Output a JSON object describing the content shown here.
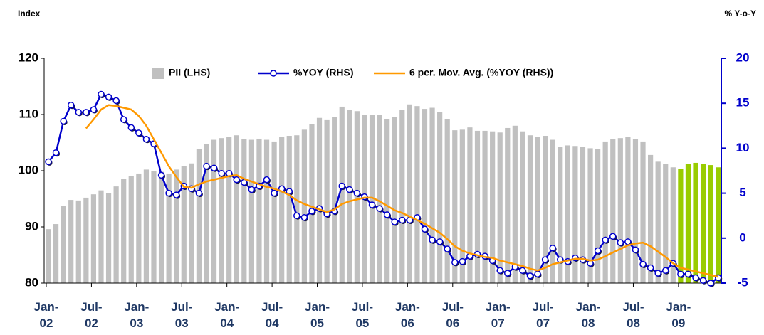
{
  "chart_data": {
    "type": "bar_line",
    "left_axis_title": "Index",
    "right_axis_title": "% Y-o-Y",
    "categories": [
      "Jan-02",
      null,
      null,
      null,
      null,
      null,
      "Jul-02",
      null,
      null,
      null,
      null,
      null,
      "Jan-03",
      null,
      null,
      null,
      null,
      null,
      "Jul-03",
      null,
      null,
      null,
      null,
      null,
      "Jan-04",
      null,
      null,
      null,
      null,
      null,
      "Jul-04",
      null,
      null,
      null,
      null,
      null,
      "Jan-05",
      null,
      null,
      null,
      null,
      null,
      "Jul-05",
      null,
      null,
      null,
      null,
      null,
      "Jan-06",
      null,
      null,
      null,
      null,
      null,
      "Jul-06",
      null,
      null,
      null,
      null,
      null,
      "Jan-07",
      null,
      null,
      null,
      null,
      null,
      "Jul-07",
      null,
      null,
      null,
      null,
      null,
      "Jan-08",
      null,
      null,
      null,
      null,
      null,
      "Jul-08",
      null,
      null,
      null,
      null,
      null,
      "Jan-09",
      null,
      null,
      null,
      null,
      null
    ],
    "ylim": [
      80,
      120
    ],
    "yticks": [
      80,
      90,
      100,
      110,
      120
    ],
    "y2lim": [
      -5,
      20
    ],
    "y2ticks": [
      -5,
      0,
      5,
      10,
      15,
      20
    ],
    "series": [
      {
        "name": "PII (LHS)",
        "type": "bar",
        "color": "#c0c0c0",
        "colors": [
          "#c0c0c0",
          "#c0c0c0",
          "#c0c0c0",
          "#c0c0c0",
          "#c0c0c0",
          "#c0c0c0",
          "#c0c0c0",
          "#c0c0c0",
          "#c0c0c0",
          "#c0c0c0",
          "#c0c0c0",
          "#c0c0c0",
          "#c0c0c0",
          "#c0c0c0",
          "#c0c0c0",
          "#c0c0c0",
          "#c0c0c0",
          "#c0c0c0",
          "#c0c0c0",
          "#c0c0c0",
          "#c0c0c0",
          "#c0c0c0",
          "#c0c0c0",
          "#c0c0c0",
          "#c0c0c0",
          "#c0c0c0",
          "#c0c0c0",
          "#c0c0c0",
          "#c0c0c0",
          "#c0c0c0",
          "#c0c0c0",
          "#c0c0c0",
          "#c0c0c0",
          "#c0c0c0",
          "#c0c0c0",
          "#c0c0c0",
          "#c0c0c0",
          "#c0c0c0",
          "#c0c0c0",
          "#c0c0c0",
          "#c0c0c0",
          "#c0c0c0",
          "#c0c0c0",
          "#c0c0c0",
          "#c0c0c0",
          "#c0c0c0",
          "#c0c0c0",
          "#c0c0c0",
          "#c0c0c0",
          "#c0c0c0",
          "#c0c0c0",
          "#c0c0c0",
          "#c0c0c0",
          "#c0c0c0",
          "#c0c0c0",
          "#c0c0c0",
          "#c0c0c0",
          "#c0c0c0",
          "#c0c0c0",
          "#c0c0c0",
          "#c0c0c0",
          "#c0c0c0",
          "#c0c0c0",
          "#c0c0c0",
          "#c0c0c0",
          "#c0c0c0",
          "#c0c0c0",
          "#c0c0c0",
          "#c0c0c0",
          "#c0c0c0",
          "#c0c0c0",
          "#c0c0c0",
          "#c0c0c0",
          "#c0c0c0",
          "#c0c0c0",
          "#c0c0c0",
          "#c0c0c0",
          "#c0c0c0",
          "#c0c0c0",
          "#c0c0c0",
          "#c0c0c0",
          "#c0c0c0",
          "#c0c0c0",
          "#c0c0c0",
          "#99cc00",
          "#99cc00",
          "#99cc00",
          "#99cc00",
          "#99cc00",
          "#99cc00"
        ],
        "values": [
          89.6,
          90.5,
          93.7,
          94.8,
          94.7,
          95.2,
          95.8,
          96.5,
          96,
          97.2,
          98.5,
          99,
          99.5,
          100.2,
          100,
          99.8,
          99.5,
          100.2,
          100.8,
          101.3,
          103.8,
          104.8,
          105.5,
          105.8,
          106,
          106.3,
          105.6,
          105.5,
          105.7,
          105.5,
          105.2,
          106,
          106.2,
          106.3,
          107.3,
          108.3,
          109.4,
          109,
          109.6,
          111.4,
          110.8,
          110.6,
          110,
          110,
          110,
          109.2,
          109.6,
          110.8,
          111.8,
          111.5,
          111,
          111.2,
          110.4,
          109.2,
          107.2,
          107.3,
          107.7,
          107.1,
          107.1,
          107,
          106.8,
          107.6,
          108,
          107,
          106.3,
          106,
          106.2,
          105.5,
          104.3,
          104.5,
          104.4,
          104.3,
          104,
          103.9,
          105.2,
          105.6,
          105.8,
          106,
          105.6,
          105.2,
          102.8,
          101.6,
          101.2,
          100.6,
          100.3,
          101.2,
          101.4,
          101.2,
          101,
          100.6
        ]
      },
      {
        "name": "%YOY (RHS)",
        "type": "line",
        "axis": "y2",
        "color": "#0000cc",
        "marker": true,
        "values": [
          8.5,
          9.5,
          13,
          14.8,
          14,
          14,
          14.3,
          16,
          15.7,
          15.3,
          13.2,
          12.3,
          11.7,
          11,
          10.5,
          7,
          5,
          4.8,
          5.8,
          5.5,
          5,
          8,
          7.8,
          7.2,
          7.2,
          6.5,
          6.2,
          5.4,
          5.8,
          6.5,
          5,
          5.5,
          5.2,
          2.5,
          2.3,
          3,
          3.3,
          2.7,
          3,
          5.8,
          5.4,
          5,
          4.6,
          3.7,
          3.3,
          2.6,
          1.8,
          2,
          2,
          2.3,
          1,
          -0.2,
          -0.4,
          -1.2,
          -2.7,
          -2.6,
          -2,
          -1.8,
          -2,
          -2.5,
          -3.6,
          -3.9,
          -3.2,
          -3.6,
          -4.2,
          -4,
          -2.4,
          -1.1,
          -2.4,
          -2.6,
          -2.2,
          -2.4,
          -2.8,
          -1.4,
          -0.2,
          0.2,
          -0.5,
          -0.4,
          -1.3,
          -2.9,
          -3.3,
          -3.9,
          -3.6,
          -2.8,
          -4,
          -4,
          -4.4,
          -4.7,
          -5,
          -4.4
        ]
      },
      {
        "name": "6 per. Mov. Avg. (%YOY (RHS))",
        "type": "line",
        "axis": "y2",
        "color": "#ff9900",
        "marker": false,
        "values": [
          null,
          null,
          null,
          null,
          null,
          12.2,
          13.2,
          14.3,
          14.8,
          14.7,
          14.5,
          14.3,
          13.6,
          12.5,
          11,
          9.5,
          8,
          6.8,
          5.7,
          5.6,
          6,
          6.3,
          6.5,
          6.7,
          6.9,
          7,
          6.6,
          6.3,
          6,
          5.7,
          5.5,
          5.2,
          4.8,
          4.2,
          3.8,
          3.5,
          3.2,
          2.9,
          3.2,
          3.8,
          4.1,
          4.3,
          4.5,
          4.5,
          4.1,
          3.6,
          3.1,
          2.8,
          2.4,
          2,
          1.6,
          1.1,
          0.6,
          -0.1,
          -0.9,
          -1.4,
          -1.7,
          -1.9,
          -2.1,
          -2.2,
          -2.5,
          -2.7,
          -2.9,
          -3.1,
          -3.4,
          -3.6,
          -3.3,
          -2.9,
          -2.7,
          -2.5,
          -2.3,
          -2.3,
          -2.5,
          -2.4,
          -2,
          -1.6,
          -1.2,
          -0.8,
          -0.6,
          -0.5,
          -0.9,
          -1.5,
          -2.1,
          -2.8,
          -3.3,
          -3.5,
          -3.7,
          -3.9,
          -4.1,
          -4.3
        ]
      }
    ],
    "left_tick_color": "#000000",
    "right_tick_color": "#0000cc"
  }
}
